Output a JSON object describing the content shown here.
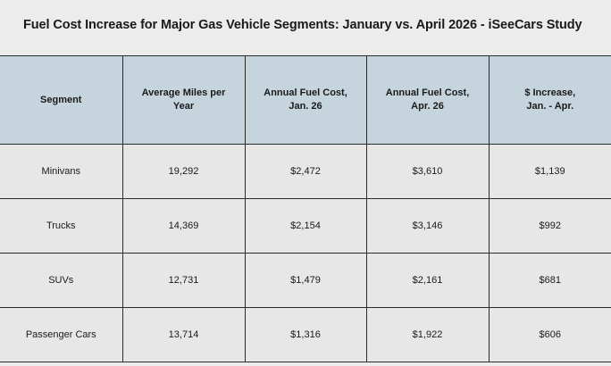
{
  "title": "Fuel Cost Increase for Major Gas Vehicle Segments: January vs. April 2026 - iSeeCars Study",
  "headers": [
    "Segment",
    "Average Miles per\nYear",
    "Annual Fuel Cost,\nJan. 26",
    "Annual Fuel Cost,\nApr. 26",
    "$ Increase,\nJan. - Apr."
  ],
  "rows": [
    [
      "Minivans",
      "19,292",
      "$2,472",
      "$3,610",
      "$1,139"
    ],
    [
      "Trucks",
      "14,369",
      "$2,154",
      "$3,146",
      "$992"
    ],
    [
      "SUVs",
      "12,731",
      "$1,479",
      "$2,161",
      "$681"
    ],
    [
      "Passenger Cars",
      "13,714",
      "$1,316",
      "$1,922",
      "$606"
    ]
  ]
}
